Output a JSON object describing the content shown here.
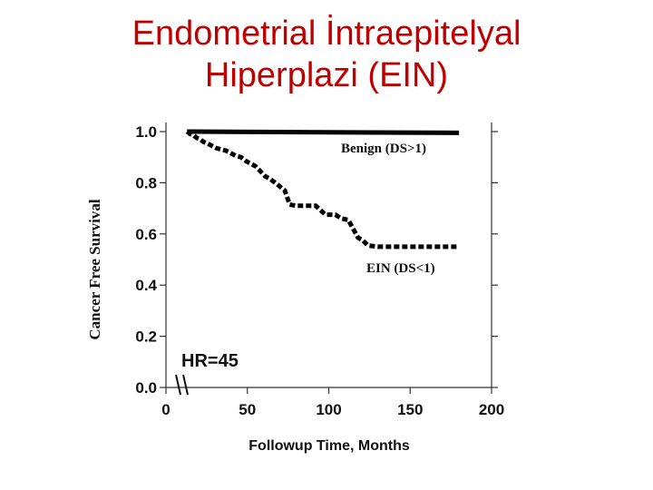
{
  "title": {
    "line1": "Endometrial İntraepitelyal",
    "line2": "Hiperplazi (EIN)"
  },
  "chart_data": {
    "type": "line",
    "xlabel": "Followup Time, Months",
    "ylabel": "Cancer Free Survival",
    "xlim": [
      0,
      200
    ],
    "ylim": [
      0.0,
      1.0
    ],
    "xticks": [
      0,
      50,
      100,
      150,
      200
    ],
    "yticks": [
      "0.0",
      "0.2",
      "0.4",
      "0.6",
      "0.8",
      "1.0"
    ],
    "grid": false,
    "annotation": "HR=45",
    "series": [
      {
        "name": "Benign (DS>1)",
        "style": "solid",
        "color": "#000000",
        "x": [
          13,
          180
        ],
        "y": [
          1.0,
          0.995
        ]
      },
      {
        "name": "EIN (DS<1)",
        "style": "dashed",
        "color": "#000000",
        "x": [
          13,
          15,
          17,
          19,
          21,
          23,
          25,
          28,
          31,
          34,
          37,
          40,
          43,
          46,
          49,
          52,
          55,
          58,
          61,
          64,
          67,
          70,
          73,
          76,
          80,
          86,
          92,
          98,
          104,
          108,
          112,
          115,
          118,
          121,
          124,
          130,
          140,
          150,
          160,
          170,
          180
        ],
        "y": [
          1.0,
          0.99,
          0.985,
          0.975,
          0.97,
          0.96,
          0.955,
          0.945,
          0.935,
          0.93,
          0.925,
          0.915,
          0.905,
          0.9,
          0.885,
          0.875,
          0.865,
          0.845,
          0.825,
          0.815,
          0.8,
          0.785,
          0.77,
          0.715,
          0.71,
          0.71,
          0.71,
          0.675,
          0.675,
          0.66,
          0.655,
          0.62,
          0.585,
          0.575,
          0.555,
          0.55,
          0.55,
          0.55,
          0.55,
          0.55,
          0.55
        ]
      }
    ]
  }
}
